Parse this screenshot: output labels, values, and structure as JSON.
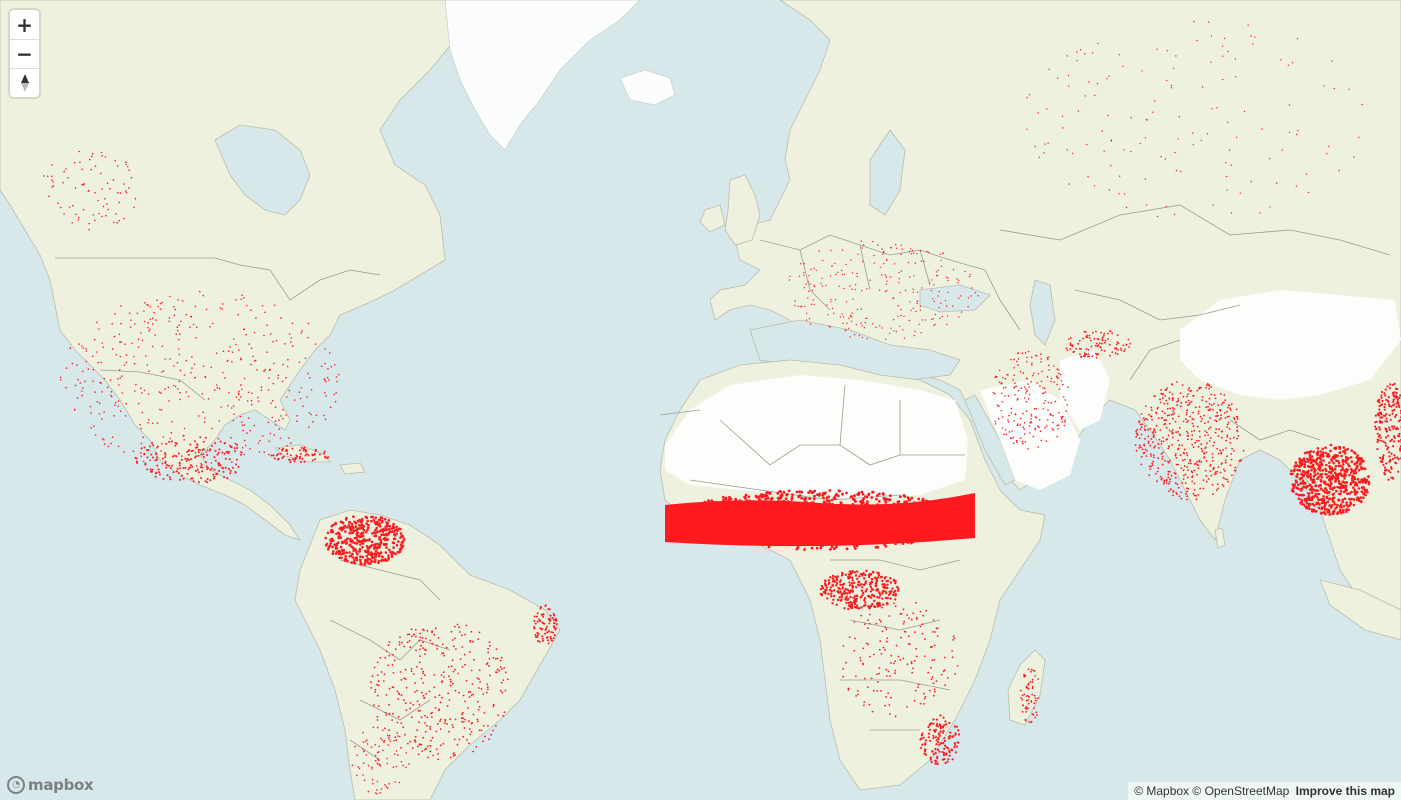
{
  "map": {
    "land_color": "#eef1de",
    "water_color": "#d6e8e9",
    "desert_color": "#fdfdfb",
    "fire_color": "#ff1a20"
  },
  "controls": {
    "zoom_in_label": "+",
    "zoom_out_label": "−",
    "compass_icon": "compass-icon"
  },
  "logo": {
    "text": "mapbox"
  },
  "attribution": {
    "mapbox": "© Mapbox",
    "osm": "© OpenStreetMap",
    "improve": "Improve this map"
  }
}
